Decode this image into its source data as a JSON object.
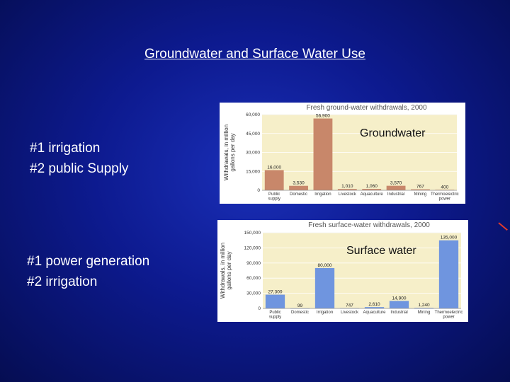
{
  "slide": {
    "title": "Groundwater and Surface Water Use",
    "groundwater_bullets": [
      "#1 irrigation",
      "#2 public Supply"
    ],
    "surface_bullets": [
      "#1 power generation",
      "#2 irrigation"
    ],
    "groundwater_label": "Groundwater",
    "surface_label": "Surface water"
  },
  "chart_data": [
    {
      "type": "bar",
      "title": "Fresh ground-water withdrawals, 2000",
      "ylabel_lines": [
        "Withdrawals, in million",
        "gallons per day"
      ],
      "ylim": [
        0,
        60000
      ],
      "yticks": [
        0,
        15000,
        30000,
        45000,
        60000
      ],
      "ytick_labels": [
        "0",
        "15,000",
        "30,000",
        "45,000",
        "60,000"
      ],
      "categories": [
        [
          "Public",
          "supply"
        ],
        [
          "Domestic"
        ],
        [
          "Irrigation"
        ],
        [
          "Livestock"
        ],
        [
          "Aquaculture"
        ],
        [
          "Industrial"
        ],
        [
          "Mining"
        ],
        [
          "Thermoelectric",
          "power"
        ]
      ],
      "values": [
        16000,
        3530,
        56900,
        1010,
        1060,
        3570,
        767,
        400
      ],
      "value_labels": [
        "16,000",
        "3,530",
        "56,900",
        "1,010",
        "1,060",
        "3,570",
        "767",
        "400"
      ],
      "color": "#c8876a",
      "plot_bg": "#f6efc9"
    },
    {
      "type": "bar",
      "title": "Fresh surface-water withdrawals, 2000",
      "ylabel_lines": [
        "Withdrawals, in million",
        "gallons per day"
      ],
      "ylim": [
        0,
        150000
      ],
      "yticks": [
        0,
        30000,
        60000,
        90000,
        120000,
        150000
      ],
      "ytick_labels": [
        "0",
        "30,000",
        "60,000",
        "90,000",
        "120,000",
        "150,000"
      ],
      "categories": [
        [
          "Public",
          "supply"
        ],
        [
          "Domestic"
        ],
        [
          "Irrigation"
        ],
        [
          "Livestock"
        ],
        [
          "Aquaculture"
        ],
        [
          "Industrial"
        ],
        [
          "Mining"
        ],
        [
          "Thermoelectric",
          "power"
        ]
      ],
      "values": [
        27300,
        99,
        80000,
        747,
        2610,
        14900,
        1240,
        135000
      ],
      "value_labels": [
        "27,300",
        "99",
        "80,000",
        "747",
        "2,610",
        "14,900",
        "1,240",
        "135,000"
      ],
      "color": "#6f95df",
      "plot_bg": "#f6efc9"
    }
  ]
}
